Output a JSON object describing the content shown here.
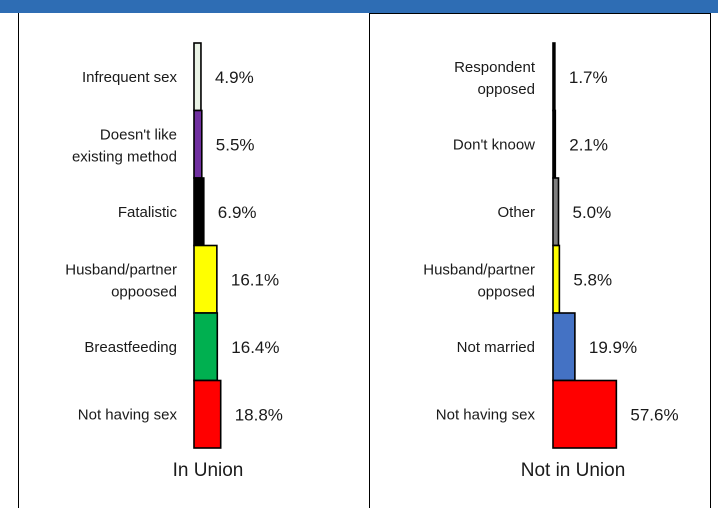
{
  "header": {
    "title": "",
    "background": "#2e6db4"
  },
  "chart_data": [
    {
      "type": "bar",
      "orientation": "horizontal",
      "group_label": "In Union",
      "xlabel": "",
      "ylabel": "",
      "xlim": [
        0,
        60
      ],
      "categories": [
        "Infrequent sex",
        "Doesn't like existing method",
        "Fatalistic",
        "Husband/partner oppoosed",
        "Breastfeeding",
        "Not having sex"
      ],
      "label_lines": [
        [
          "Infrequent sex"
        ],
        [
          "Doesn't like",
          "existing method"
        ],
        [
          "Fatalistic"
        ],
        [
          "Husband/partner",
          "oppoosed"
        ],
        [
          "Breastfeeding"
        ],
        [
          "Not having sex"
        ]
      ],
      "values": [
        4.9,
        5.5,
        6.9,
        16.1,
        16.4,
        18.8
      ],
      "value_labels": [
        "4.9%",
        "5.5%",
        "6.9%",
        "16.1%",
        "16.4%",
        "18.8%"
      ],
      "colors": [
        "#eaf3e6",
        "#7030a0",
        "#000000",
        "#ffff00",
        "#00b050",
        "#ff0000"
      ]
    },
    {
      "type": "bar",
      "orientation": "horizontal",
      "group_label": "Not in Union",
      "xlabel": "",
      "ylabel": "",
      "xlim": [
        0,
        60
      ],
      "categories": [
        "Respondent opposed",
        "Don't knoow",
        "Other",
        "Husband/partner opposed",
        "Not married",
        "Not having sex"
      ],
      "label_lines": [
        [
          "Respondent",
          "opposed"
        ],
        [
          "Don't knoow"
        ],
        [
          "Other"
        ],
        [
          "Husband/partner",
          "opposed"
        ],
        [
          "Not married"
        ],
        [
          "Not having sex"
        ]
      ],
      "values": [
        1.7,
        2.1,
        5.0,
        5.8,
        19.9,
        57.6
      ],
      "value_labels": [
        "1.7%",
        "2.1%",
        "5.0%",
        "5.8%",
        "19.9%",
        "57.6%"
      ],
      "colors": [
        "#000000",
        "#000000",
        "#808080",
        "#ffff00",
        "#4472c4",
        "#ff0000"
      ]
    }
  ]
}
